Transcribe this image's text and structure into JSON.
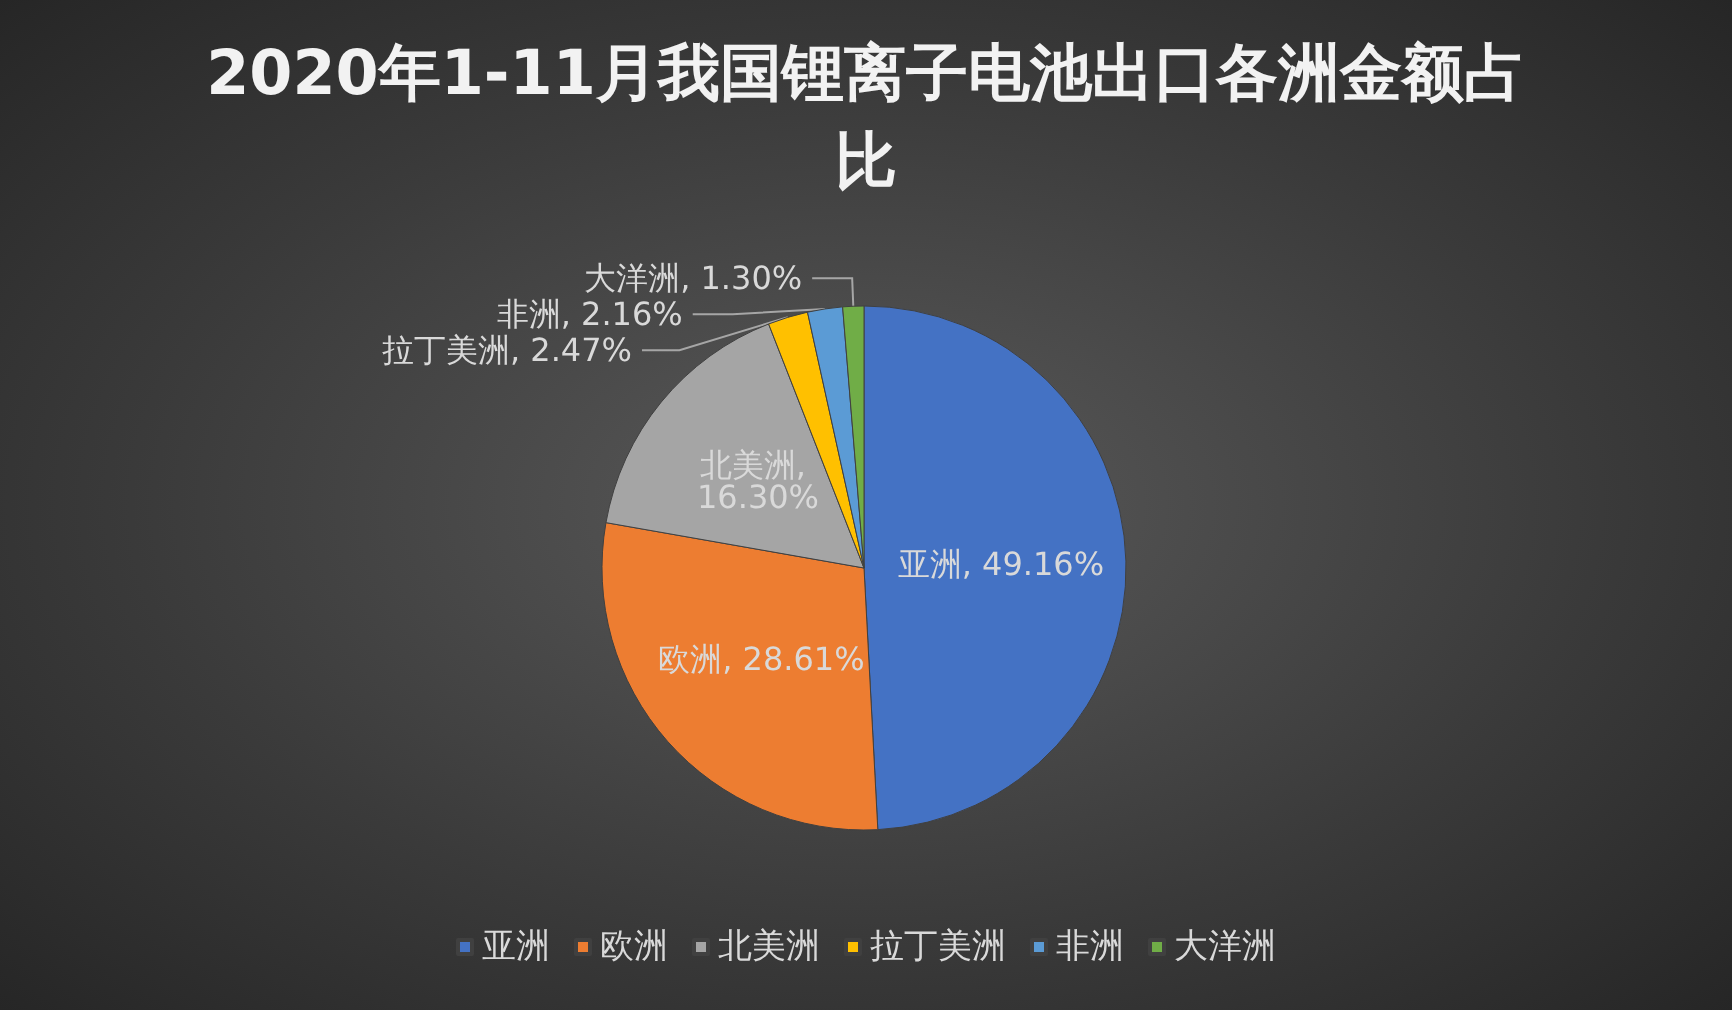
{
  "chart_data": {
    "type": "pie",
    "title": "2020年1-11月我国锂离子电池出口各洲金额占比",
    "categories": [
      "亚洲",
      "欧洲",
      "北美洲",
      "拉丁美洲",
      "非洲",
      "大洋洲"
    ],
    "values": [
      49.16,
      28.61,
      16.3,
      2.47,
      2.16,
      1.3
    ],
    "colors": [
      "#4472c4",
      "#ed7d31",
      "#a5a5a5",
      "#ffc000",
      "#5b9bd5",
      "#70ad47"
    ],
    "value_labels": [
      "亚洲, 49.16%",
      "欧洲, 28.61%",
      "北美洲, 16.30%",
      "拉丁美洲, 2.47%",
      "非洲, 2.16%",
      "大洋洲, 1.30%"
    ],
    "legend": "bottom"
  }
}
